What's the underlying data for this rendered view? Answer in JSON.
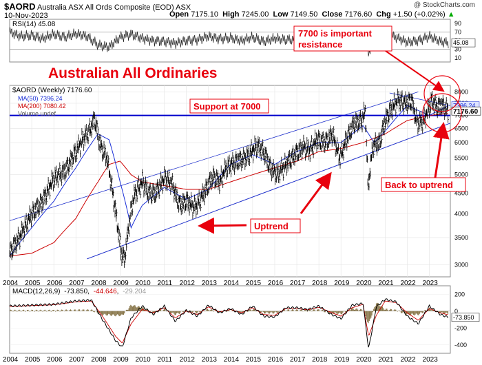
{
  "header": {
    "symbol": "$AORD",
    "name": "Australia ASX All Ords Composite (EOD)",
    "exchange": "ASX",
    "date": "10-Nov-2023",
    "open_label": "Open",
    "open": "7175.10",
    "high_label": "High",
    "high": "7245.00",
    "low_label": "Low",
    "low": "7149.50",
    "close_label": "Close",
    "close": "7176.60",
    "chg_label": "Chg",
    "chg": "+1.50 (+0.02%)",
    "watermark": "@ StockCharts.com"
  },
  "annotations": {
    "title": "Australian All Ordinaries",
    "resistance": "7700 is important resistance",
    "support": "Support at 7000",
    "uptrend": "Uptrend",
    "back": "Back to uptrend"
  },
  "colors": {
    "price": "#000000",
    "ma50": "#1a2fd6",
    "ma200": "#cc0000",
    "annotation": "#e8000d",
    "support_line": "#0000cc",
    "channel": "#2233cc",
    "osc_fill": "#e8e8e8",
    "volume": "#7b6a3a"
  },
  "chart_data": [
    {
      "type": "line",
      "name": "RSI(14)",
      "legend": "RSI(14) 45.08",
      "last_value_label": "45.08",
      "yticks": [
        10,
        30,
        50,
        70,
        90
      ],
      "ylim": [
        0,
        100
      ],
      "overbought": 70,
      "oversold": 30,
      "x": [
        2004,
        2004.5,
        2005,
        2005.5,
        2006,
        2006.5,
        2007,
        2007.5,
        2008,
        2008.5,
        2009,
        2009.5,
        2010,
        2010.5,
        2011,
        2011.5,
        2012,
        2012.5,
        2013,
        2013.5,
        2014,
        2014.5,
        2015,
        2015.5,
        2016,
        2016.5,
        2017,
        2017.5,
        2018,
        2018.5,
        2019,
        2019.5,
        2020,
        2020.25,
        2020.5,
        2021,
        2021.5,
        2022,
        2022.5,
        2023,
        2023.5,
        2023.86
      ],
      "values": [
        70,
        60,
        62,
        55,
        65,
        58,
        66,
        60,
        40,
        35,
        58,
        65,
        55,
        50,
        48,
        44,
        50,
        52,
        60,
        54,
        56,
        50,
        58,
        48,
        55,
        52,
        54,
        56,
        58,
        45,
        62,
        58,
        60,
        20,
        62,
        64,
        58,
        46,
        50,
        60,
        48,
        45
      ]
    },
    {
      "type": "line",
      "title": "$AORD (Weekly) 7176.60",
      "yscale": "log",
      "ylim": [
        2800,
        8300
      ],
      "yticks": [
        3000,
        3500,
        4000,
        4500,
        5000,
        5500,
        6000,
        6500,
        7000,
        7500,
        8000
      ],
      "xticks": [
        "2004",
        "2005",
        "2006",
        "2007",
        "2008",
        "2009",
        "2010",
        "2011",
        "2012",
        "2013",
        "2014",
        "2015",
        "2016",
        "2017",
        "2018",
        "2019",
        "2020",
        "2021",
        "2022",
        "2023"
      ],
      "last_price_label": "7176.60",
      "ma50_label": "7396.24",
      "support_level": 7000,
      "series": [
        {
          "name": "$AORD",
          "x": [
            2004,
            2004.5,
            2005,
            2005.5,
            2006,
            2006.5,
            2007,
            2007.3,
            2007.6,
            2007.85,
            2008.1,
            2008.4,
            2008.75,
            2009.05,
            2009.2,
            2009.6,
            2010,
            2010.3,
            2010.6,
            2011,
            2011.3,
            2011.7,
            2012,
            2012.4,
            2012.8,
            2013.2,
            2013.5,
            2013.8,
            2014.3,
            2014.7,
            2015.2,
            2015.5,
            2015.8,
            2016.1,
            2016.5,
            2016.9,
            2017.3,
            2017.6,
            2017.9,
            2018.3,
            2018.6,
            2018.95,
            2019.3,
            2019.6,
            2019.95,
            2020.1,
            2020.22,
            2020.45,
            2020.75,
            2021,
            2021.3,
            2021.6,
            2021.9,
            2022.2,
            2022.45,
            2022.75,
            2023.1,
            2023.35,
            2023.6,
            2023.86
          ],
          "values": [
            3200,
            3550,
            4000,
            4300,
            4900,
            5100,
            5700,
            6100,
            6400,
            6850,
            5900,
            5500,
            4200,
            3200,
            3100,
            4400,
            4800,
            4500,
            4500,
            4900,
            4800,
            4200,
            4300,
            4150,
            4500,
            4950,
            4800,
            5200,
            5400,
            5500,
            5900,
            5700,
            5200,
            5000,
            5300,
            5600,
            5850,
            5750,
            6100,
            6000,
            6300,
            5500,
            6200,
            6700,
            6800,
            7200,
            4600,
            5900,
            6000,
            6800,
            7300,
            7650,
            7500,
            7600,
            6700,
            6800,
            7600,
            7350,
            7400,
            7176.6
          ]
        },
        {
          "name": "MA(50) 7396.24",
          "x": [
            2004,
            2005,
            2006,
            2007,
            2008,
            2008.5,
            2009,
            2009.5,
            2010,
            2011,
            2012,
            2013,
            2014,
            2015,
            2016,
            2017,
            2018,
            2019,
            2020,
            2020.5,
            2021,
            2022,
            2023,
            2023.86
          ],
          "values": [
            3150,
            3700,
            4300,
            5200,
            6300,
            6100,
            4800,
            3700,
            4200,
            4650,
            4350,
            4600,
            5300,
            5600,
            5300,
            5700,
            6000,
            6000,
            6600,
            6000,
            6400,
            7400,
            7000,
            7396.24
          ]
        },
        {
          "name": "MA(200) 7080.42",
          "x": [
            2004,
            2005,
            2006,
            2007,
            2008,
            2008.5,
            2009,
            2009.5,
            2010,
            2011,
            2012,
            2013,
            2014,
            2015,
            2016,
            2017,
            2018,
            2019,
            2020,
            2021,
            2022,
            2023,
            2023.86
          ],
          "values": [
            3150,
            3200,
            3400,
            3900,
            4800,
            5300,
            5400,
            5000,
            4800,
            4700,
            4600,
            4600,
            4800,
            5000,
            5200,
            5400,
            5700,
            5800,
            6000,
            6300,
            6800,
            7000,
            7080.42
          ]
        }
      ],
      "legend": [
        "$AORD (Weekly) 7176.60",
        "MA(50) 7396.24",
        "MA(200) 7080.42",
        "Volume undef"
      ]
    },
    {
      "type": "line",
      "name": "MACD(12,26,9)",
      "legend": "MACD(12,26,9) -73.850, -44.646, -29.204",
      "legend_values": [
        "-73.850",
        "-44.646",
        "-29.204"
      ],
      "last_value_label": "-73.850",
      "yticks": [
        -400,
        -200,
        0,
        200
      ],
      "ylim": [
        -500,
        300
      ],
      "x": [
        2004,
        2005,
        2006,
        2007,
        2007.7,
        2008.2,
        2008.8,
        2009.1,
        2009.5,
        2010,
        2010.5,
        2011,
        2011.5,
        2012,
        2012.5,
        2013,
        2013.5,
        2014,
        2014.5,
        2015,
        2015.5,
        2016,
        2016.5,
        2017,
        2017.5,
        2018,
        2018.5,
        2019,
        2019.5,
        2020,
        2020.25,
        2020.6,
        2021,
        2021.5,
        2022,
        2022.5,
        2023,
        2023.5,
        2023.86
      ],
      "macd": [
        60,
        70,
        80,
        120,
        130,
        -100,
        -350,
        -430,
        -80,
        60,
        -40,
        60,
        -120,
        10,
        -60,
        70,
        -20,
        30,
        -40,
        60,
        -60,
        -70,
        40,
        40,
        20,
        60,
        -30,
        -90,
        70,
        90,
        -450,
        50,
        140,
        110,
        -60,
        -150,
        60,
        -40,
        -73.85
      ],
      "signal": [
        55,
        65,
        75,
        110,
        120,
        -60,
        -300,
        -380,
        -150,
        20,
        -20,
        40,
        -80,
        0,
        -40,
        50,
        -10,
        20,
        -20,
        40,
        -40,
        -50,
        30,
        30,
        15,
        45,
        -10,
        -60,
        40,
        80,
        -300,
        -50,
        120,
        100,
        -20,
        -110,
        30,
        -20,
        -44.646
      ],
      "xticks": [
        "2004",
        "2005",
        "2006",
        "2007",
        "2008",
        "2009",
        "2010",
        "2011",
        "2012",
        "2013",
        "2014",
        "2015",
        "2016",
        "2017",
        "2018",
        "2019",
        "2020",
        "2021",
        "2022",
        "2023"
      ]
    }
  ]
}
